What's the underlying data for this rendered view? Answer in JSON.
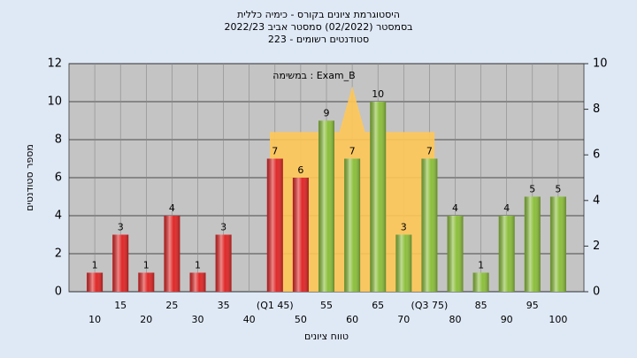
{
  "chart_data": {
    "type": "bar",
    "title": [
      "היסטוגרמת ציונים בקורס - כימיה כללית",
      "בסמסטר (02/2022) סמסטר אביב 2022/23",
      "סטודנטים רשומים - 223"
    ],
    "annotation": "במשימה : Exam_B",
    "x_label": "טווח ציונים",
    "y_label": "מספר סטודנטים",
    "series": [
      {
        "type": "area",
        "axis": "y2",
        "color": "#ffc858",
        "x": [
          44,
          57.5,
          60,
          62.5,
          76
        ],
        "values": [
          7,
          7,
          9,
          7,
          7
        ]
      },
      {
        "type": "bar",
        "color": "#e02828",
        "x": [
          10,
          15,
          20,
          25,
          30,
          35,
          40,
          45,
          50
        ],
        "values": [
          1,
          3,
          1,
          4,
          1,
          3,
          0,
          7,
          6
        ]
      },
      {
        "type": "bar",
        "color": "#8cbf3c",
        "x": [
          55,
          60,
          65,
          70,
          75,
          80,
          85,
          90,
          95,
          100
        ],
        "values": [
          9,
          7,
          10,
          3,
          7,
          4,
          1,
          4,
          5,
          5
        ]
      }
    ],
    "xlim": [
      5,
      105
    ],
    "xticks": [
      10,
      15,
      20,
      25,
      30,
      35,
      40,
      {
        "value": 45,
        "label": "(Q1 45)"
      },
      50,
      55,
      60,
      65,
      70,
      {
        "value": 75,
        "label": "(Q3 75)"
      },
      80,
      85,
      90,
      95,
      100
    ],
    "ylim": [
      0,
      12
    ],
    "yticks": [
      0,
      2,
      4,
      6,
      8,
      10,
      12
    ],
    "y2lim": [
      0,
      10
    ],
    "y2ticks": [
      0,
      2,
      4,
      6,
      8,
      10
    ],
    "grid": true
  }
}
